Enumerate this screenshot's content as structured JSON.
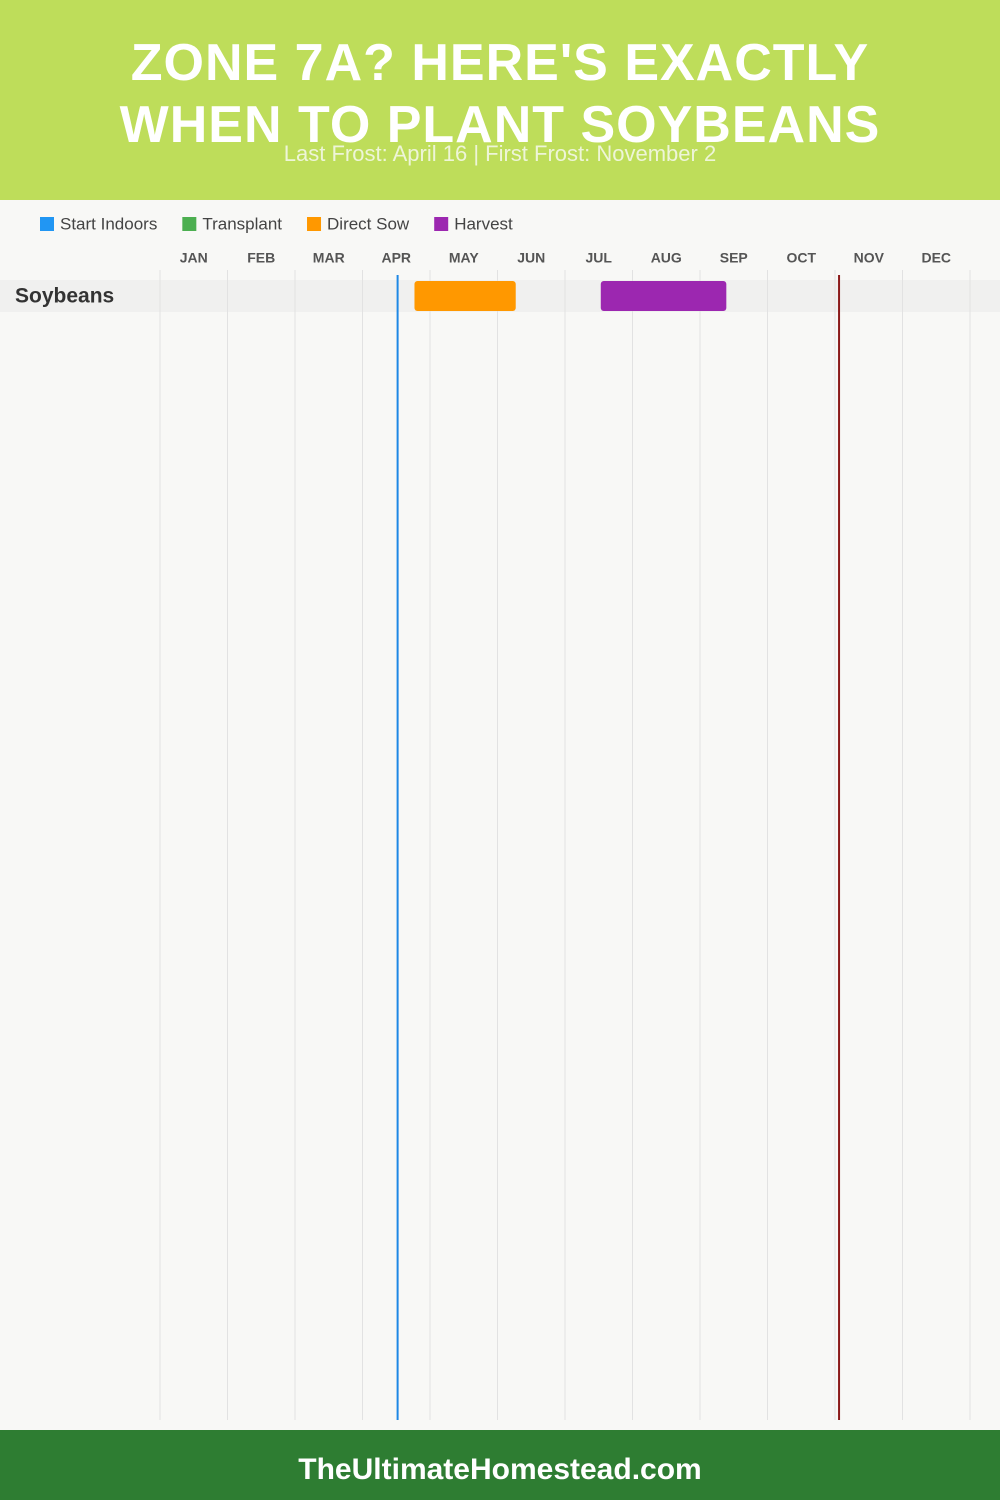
{
  "chart_data": {
    "type": "gantt",
    "title": "ZONE 7A? HERE'S EXACTLY WHEN TO PLANT SOYBEANS",
    "subtitle": "Last Frost: April 16 | First Frost: November 2",
    "months": [
      "JAN",
      "FEB",
      "MAR",
      "APR",
      "MAY",
      "JUN",
      "JUL",
      "AUG",
      "SEP",
      "OCT",
      "NOV",
      "DEC"
    ],
    "xlim": [
      0,
      12
    ],
    "xticks": [
      0,
      1,
      2,
      3,
      4,
      5,
      6,
      7,
      8,
      9,
      10,
      11,
      12
    ],
    "grid": true,
    "categories": [
      "Soybeans"
    ],
    "series": [
      {
        "name": "Start Indoors",
        "color": "#2196f3",
        "values": [
          null
        ]
      },
      {
        "name": "Transplant",
        "color": "#4caf50",
        "values": [
          null
        ]
      },
      {
        "name": "Direct Sow",
        "color": "#ff9800",
        "values": [
          [
            3.77,
            5.27
          ]
        ]
      },
      {
        "name": "Harvest",
        "color": "#9c27b0",
        "values": [
          [
            6.53,
            8.39
          ]
        ]
      }
    ],
    "frost_lines": [
      {
        "value": 3.52,
        "color": "#1e88e5"
      },
      {
        "value": 10.06,
        "color": "#8b1a1a"
      }
    ]
  },
  "footer": "TheUltimateHomestead.com"
}
